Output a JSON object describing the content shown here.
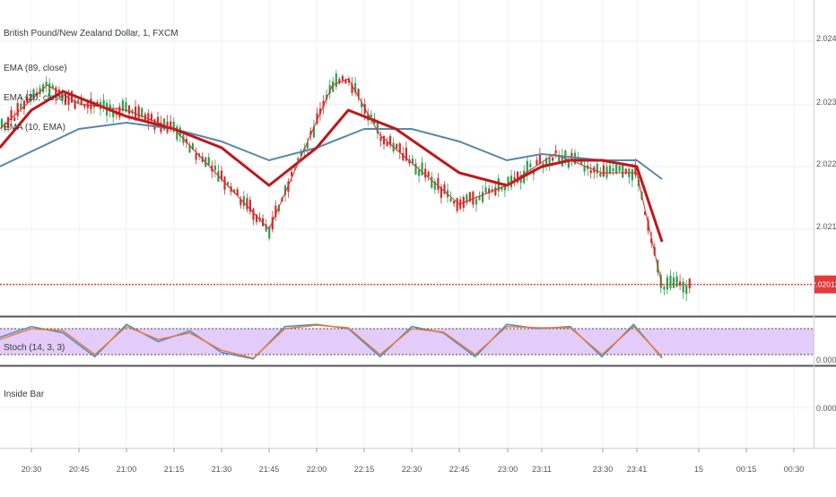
{
  "main": {
    "title": "British Pound/New Zealand Dollar, 1, FXCM",
    "indicators": [
      "EMA (89, close)",
      "EMA (20, close)",
      "EMA (10, EMA)"
    ],
    "price_label": "2.02012",
    "colors": {
      "up": "#2e9e4f",
      "down": "#c4322e",
      "ema89": "#5a86a8",
      "ema20": "#c0171b",
      "ema10": "#e3272b",
      "price_line": "#e83a3a",
      "price_badge": "#e23b3b"
    }
  },
  "stoch": {
    "label": "Stoch (14, 3, 3)",
    "axis_label": "0.0000",
    "colors": {
      "k": "#3b8fd6",
      "d": "#ef7b2a",
      "band": "#e4ccfa"
    }
  },
  "inside_bar": {
    "label": "Inside Bar",
    "axis_label": "0.0000"
  },
  "time_axis": {
    "labels": [
      "20:30",
      "20:45",
      "21:00",
      "21:15",
      "21:30",
      "21:45",
      "22:00",
      "22:15",
      "22:30",
      "22:45",
      "23:00",
      "23:11",
      "23:30",
      "23:41",
      "15",
      "00:15",
      "00:30"
    ]
  },
  "chart_data": [
    {
      "type": "line",
      "title": "British Pound/New Zealand Dollar, 1, FXCM",
      "xlabel": "",
      "ylabel": "",
      "y_ticks": [
        "2.02400",
        "2.02300",
        "2.02200",
        "2.02100"
      ],
      "ylim": [
        2.0193,
        2.0245
      ],
      "last_price": 2.02012,
      "grid": true,
      "series": [
        {
          "name": "EMA (89, close)",
          "x": [
            "20:20",
            "20:45",
            "21:00",
            "21:15",
            "21:30",
            "21:45",
            "22:00",
            "22:15",
            "22:30",
            "22:45",
            "23:00",
            "23:11",
            "23:30",
            "23:41",
            "23:49"
          ],
          "values": [
            2.022,
            2.0226,
            2.0227,
            2.0226,
            2.0224,
            2.0221,
            2.0223,
            2.0226,
            2.0226,
            2.0224,
            2.0221,
            2.0222,
            2.0221,
            2.0221,
            2.0218
          ]
        },
        {
          "name": "EMA (20, close)",
          "x": [
            "20:20",
            "20:30",
            "20:40",
            "21:00",
            "21:15",
            "21:30",
            "21:45",
            "22:00",
            "22:10",
            "22:25",
            "22:45",
            "23:00",
            "23:11",
            "23:20",
            "23:30",
            "23:41",
            "23:49"
          ],
          "values": [
            2.0223,
            2.0229,
            2.0232,
            2.0228,
            2.0226,
            2.0223,
            2.0217,
            2.0223,
            2.0229,
            2.0226,
            2.0219,
            2.0217,
            2.022,
            2.0221,
            2.0221,
            2.022,
            2.0208
          ]
        },
        {
          "name": "EMA (10, EMA)",
          "x": [
            "20:20",
            "20:35",
            "20:45",
            "21:00",
            "21:15",
            "21:30",
            "21:45",
            "22:05",
            "22:10",
            "22:20",
            "22:45",
            "23:00",
            "23:15",
            "23:30",
            "23:41",
            "23:49"
          ],
          "values": [
            2.0226,
            2.0233,
            2.023,
            2.0229,
            2.0226,
            2.0218,
            2.021,
            2.0233,
            2.0234,
            2.0225,
            2.0214,
            2.0217,
            2.0222,
            2.0219,
            2.0219,
            2.0201
          ]
        }
      ]
    },
    {
      "type": "line",
      "title": "Stoch (14, 3, 3)",
      "ylim": [
        0,
        100
      ],
      "bands": [
        20,
        80
      ],
      "series": [
        {
          "name": "%K",
          "x": [
            "20:20",
            "20:30",
            "20:40",
            "20:50",
            "21:00",
            "21:10",
            "21:20",
            "21:30",
            "21:40",
            "21:50",
            "22:00",
            "22:10",
            "22:20",
            "22:30",
            "22:40",
            "22:50",
            "23:00",
            "23:10",
            "23:20",
            "23:30",
            "23:40",
            "23:49"
          ],
          "values": [
            60,
            85,
            70,
            15,
            90,
            50,
            75,
            25,
            10,
            85,
            90,
            80,
            15,
            85,
            70,
            15,
            90,
            80,
            85,
            15,
            90,
            12
          ]
        },
        {
          "name": "%D",
          "x": [
            "20:20",
            "20:30",
            "20:40",
            "20:50",
            "21:00",
            "21:10",
            "21:20",
            "21:30",
            "21:40",
            "21:50",
            "22:00",
            "22:10",
            "22:20",
            "22:30",
            "22:40",
            "22:50",
            "23:00",
            "23:10",
            "23:20",
            "23:30",
            "23:40",
            "23:49"
          ],
          "values": [
            55,
            80,
            75,
            20,
            85,
            55,
            70,
            30,
            12,
            80,
            88,
            82,
            20,
            80,
            72,
            20,
            85,
            82,
            82,
            20,
            85,
            15
          ]
        }
      ]
    }
  ]
}
